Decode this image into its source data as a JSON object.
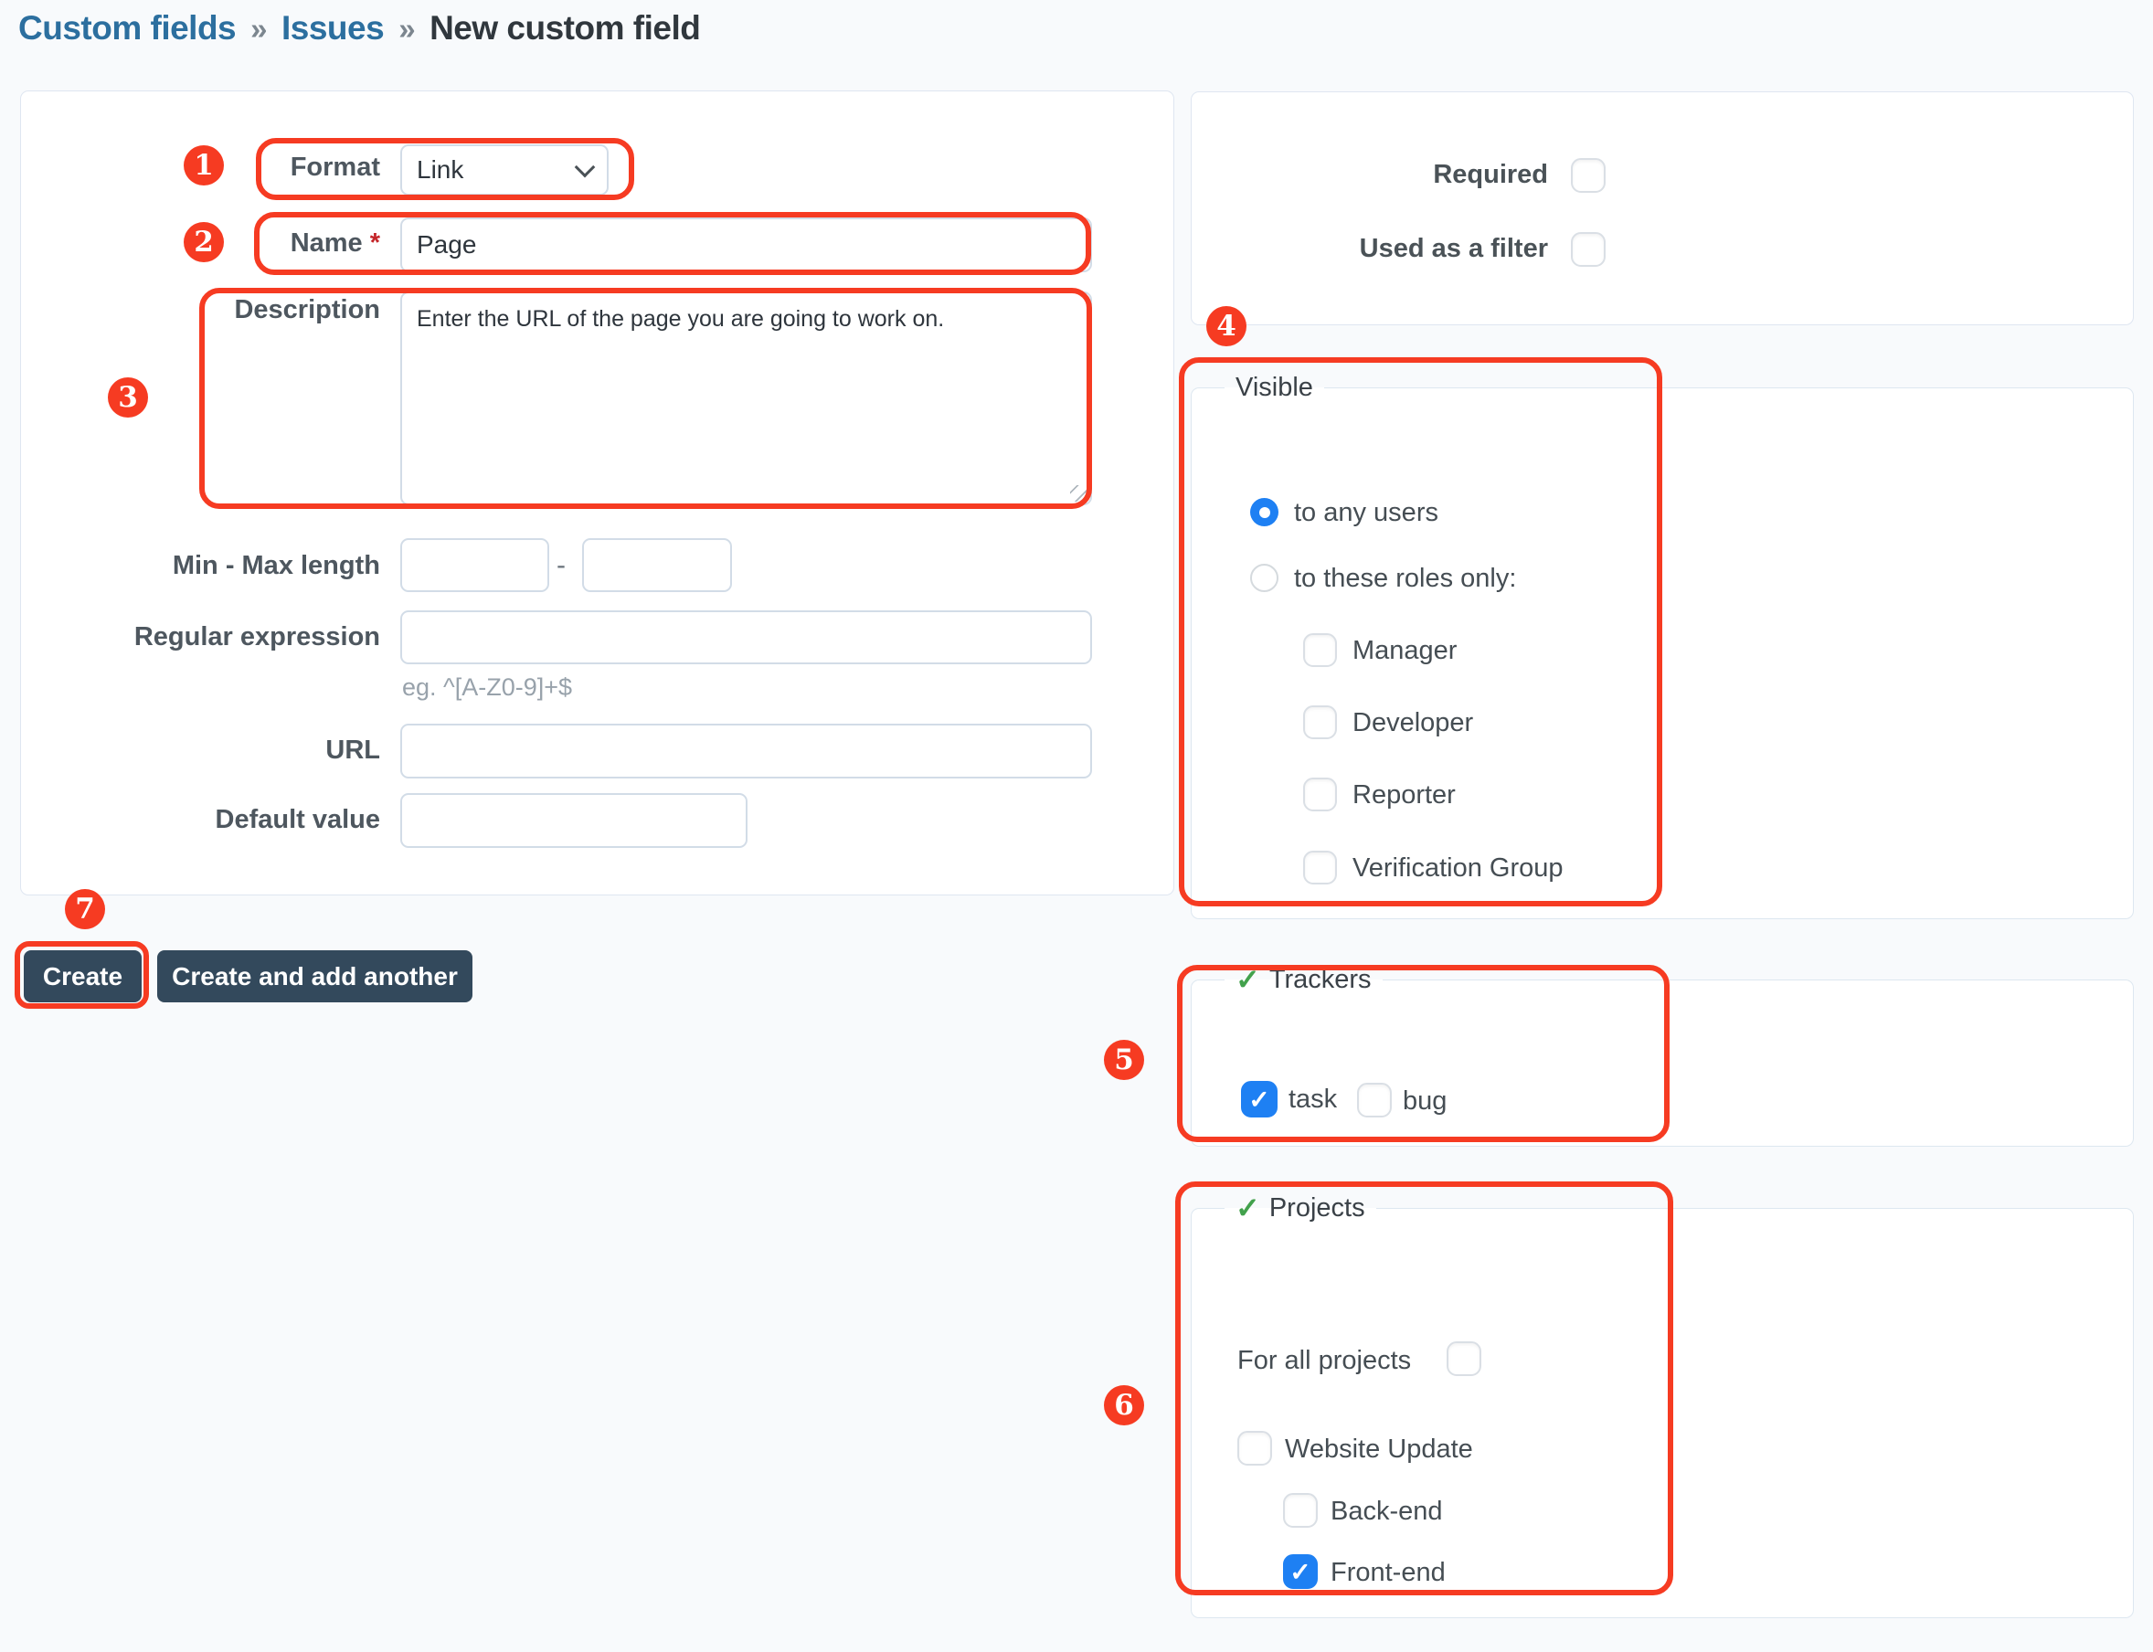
{
  "breadcrumb": {
    "items": [
      {
        "label": "Custom fields",
        "link": true
      },
      {
        "label": "Issues",
        "link": true
      },
      {
        "label": "New custom field",
        "link": false
      }
    ],
    "separator": "»"
  },
  "form": {
    "format_label": "Format",
    "format_value": "Link",
    "name_label": "Name",
    "required_asterisk": "*",
    "name_value": "Page",
    "description_label": "Description",
    "description_value": "Enter the URL of the page you are going to work on.",
    "minmax_label": "Min - Max length",
    "minmax_separator": "-",
    "min_value": "",
    "max_value": "",
    "regex_label": "Regular expression",
    "regex_value": "",
    "regex_hint": "eg. ^[A-Z0-9]+$",
    "url_label": "URL",
    "url_value": "",
    "default_label": "Default value",
    "default_value": "",
    "create_label": "Create",
    "create_add_label": "Create and add another"
  },
  "options": {
    "required_label": "Required",
    "required_checked": false,
    "filter_label": "Used as a filter",
    "filter_checked": false
  },
  "visible": {
    "legend": "Visible",
    "radios": [
      {
        "label": "to any users",
        "checked": true
      },
      {
        "label": "to these roles only:",
        "checked": false
      }
    ],
    "roles": [
      {
        "label": "Manager",
        "checked": false
      },
      {
        "label": "Developer",
        "checked": false
      },
      {
        "label": "Reporter",
        "checked": false
      },
      {
        "label": "Verification Group",
        "checked": false
      }
    ]
  },
  "trackers": {
    "legend": "Trackers",
    "items": [
      {
        "label": "task",
        "checked": true
      },
      {
        "label": "bug",
        "checked": false
      }
    ]
  },
  "projects": {
    "legend": "Projects",
    "all_projects_label": "For all projects",
    "all_projects_checked": false,
    "items": [
      {
        "label": "Website Update",
        "checked": false,
        "indent": 0
      },
      {
        "label": "Back-end",
        "checked": false,
        "indent": 1
      },
      {
        "label": "Front-end",
        "checked": true,
        "indent": 1
      }
    ]
  },
  "annotations": [
    "1",
    "2",
    "3",
    "4",
    "5",
    "6",
    "7"
  ],
  "icons": {
    "check_glyph": "✓",
    "legend_check_glyph": "✓"
  },
  "colors": {
    "annotation_red": "#f63b22",
    "accent_blue": "#1e80f3",
    "legend_check_green": "#42a14c",
    "button_dark": "#33495c",
    "link_blue": "#2c6f9f"
  }
}
